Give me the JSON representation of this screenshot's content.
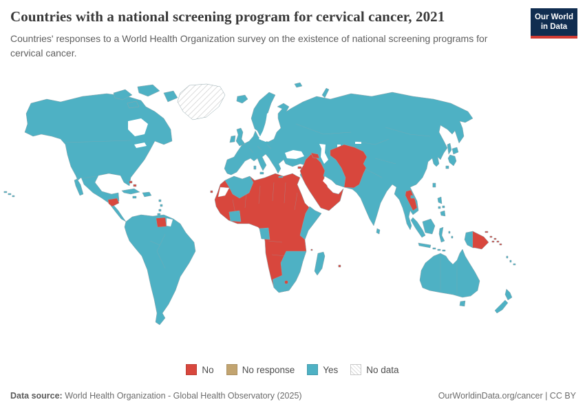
{
  "header": {
    "title": "Countries with a national screening program for cervical cancer, 2021",
    "subtitle": "Countries' responses to a World Health Organization survey on the existence of national screening programs for cervical cancer.",
    "logo": {
      "line1": "Our World",
      "line2": "in Data"
    }
  },
  "legend": {
    "items": [
      {
        "key": "no",
        "label": "No"
      },
      {
        "key": "no_response",
        "label": "No response"
      },
      {
        "key": "yes",
        "label": "Yes"
      },
      {
        "key": "no_data",
        "label": "No data"
      }
    ]
  },
  "footer": {
    "source_label": "Data source:",
    "source_text": " World Health Organization - Global Health Observatory (2025)",
    "link_text": "OurWorldinData.org/cancer | CC BY"
  },
  "chart_data": {
    "type": "choropleth-map",
    "title": "Countries with a national screening program for cervical cancer",
    "year": 2021,
    "categories": [
      "No",
      "No response",
      "Yes",
      "No data"
    ],
    "legend_position": "bottom",
    "colors": {
      "no": "#d8473d",
      "no_response": "#c2a470",
      "yes": "#4eb1c4",
      "no_data_fill": "#ffffff",
      "no_data_hatch": "#d2d2d2",
      "water": "#ffffff"
    },
    "regions": {
      "no": [
        "Honduras",
        "Bahamas",
        "Suriname",
        "Cape Verde",
        "Mauritania",
        "Senegal",
        "Gambia",
        "Guinea",
        "Guinea-Bissau",
        "Sierra Leone",
        "Mali",
        "Burkina Faso",
        "Niger",
        "Chad",
        "Sudan",
        "Eritrea",
        "Djibouti",
        "Ethiopia",
        "Nigeria",
        "Benin",
        "Togo",
        "Cameroon",
        "Central African Republic",
        "South Sudan",
        "DR Congo",
        "Angola",
        "Zambia",
        "Namibia",
        "Lesotho",
        "Tanzania",
        "Libya",
        "Egypt",
        "Comoros",
        "Mauritius",
        "Syria",
        "Iraq",
        "Jordan",
        "Saudi Arabia",
        "Yemen",
        "Oman",
        "Cyprus",
        "Azerbaijan",
        "Turkmenistan",
        "Uzbekistan",
        "Tajikistan",
        "Afghanistan",
        "Pakistan",
        "Laos",
        "Papua New Guinea",
        "Solomon Islands"
      ],
      "no_response": [],
      "yes": [
        "Canada",
        "United States",
        "Mexico",
        "Guatemala",
        "Nicaragua",
        "Costa Rica",
        "Panama",
        "Cuba",
        "Jamaica",
        "Dominican Republic",
        "Colombia",
        "Venezuela",
        "Guyana",
        "Ecuador",
        "Peru",
        "Brazil",
        "Bolivia",
        "Paraguay",
        "Uruguay",
        "Argentina",
        "Chile",
        "Morocco",
        "Algeria",
        "Tunisia",
        "Liberia",
        "Côte d'Ivoire",
        "Ghana",
        "Gabon",
        "Congo",
        "Somalia",
        "Kenya",
        "Uganda",
        "Zimbabwe",
        "Botswana",
        "Mozambique",
        "South Africa",
        "Madagascar",
        "Europe (all countries)",
        "Russia",
        "Turkey",
        "Iran",
        "Kazakhstan",
        "India",
        "Sri Lanka",
        "China",
        "Mongolia",
        "Japan",
        "South Korea",
        "Myanmar",
        "Thailand",
        "Vietnam",
        "Cambodia",
        "Malaysia",
        "Indonesia",
        "Philippines",
        "Australia",
        "New Zealand",
        "Fiji"
      ],
      "no_data": [
        "Greenland"
      ]
    }
  }
}
